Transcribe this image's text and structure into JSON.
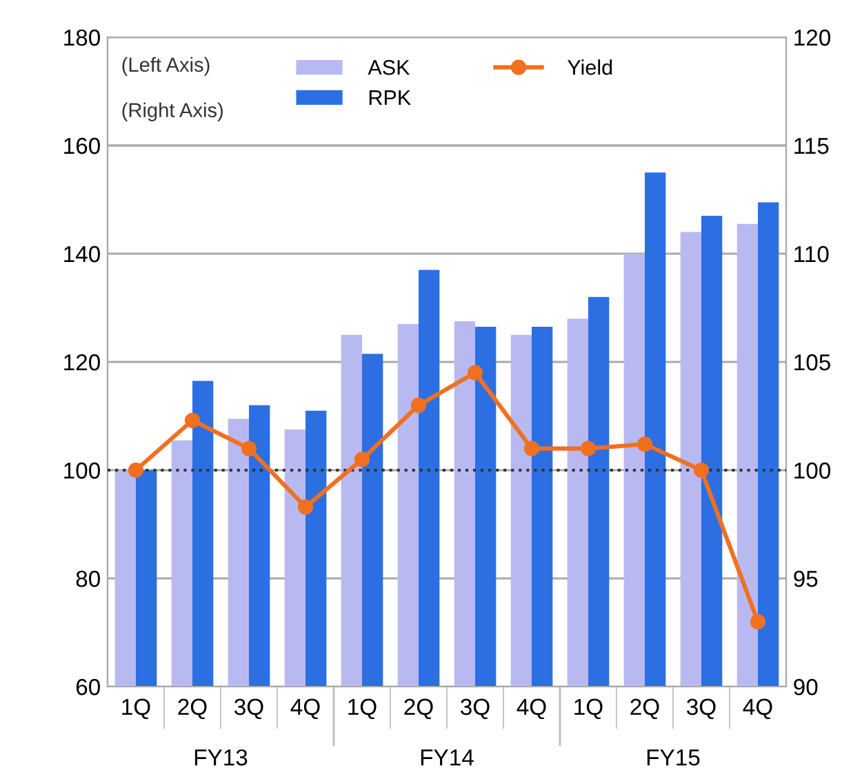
{
  "chart_data": {
    "type": "bar",
    "categories": [
      "1Q",
      "2Q",
      "3Q",
      "4Q",
      "1Q",
      "2Q",
      "3Q",
      "4Q",
      "1Q",
      "2Q",
      "3Q",
      "4Q"
    ],
    "series": [
      {
        "name": "ASK",
        "color": "#b9b9f2",
        "values": [
          100,
          105.5,
          109.5,
          107.5,
          125,
          127,
          127.5,
          125,
          128,
          140,
          144,
          145.5
        ]
      },
      {
        "name": "RPK",
        "color": "#2b6fe3",
        "values": [
          100,
          116.5,
          112,
          111,
          121.5,
          137,
          126.5,
          126.5,
          132,
          155,
          147,
          149.5
        ]
      },
      {
        "name": "Yield",
        "type": "line",
        "axis": "y2",
        "color": "#f07020",
        "values": [
          100,
          102.3,
          101,
          98.3,
          100.5,
          103,
          104.5,
          101,
          101,
          101.2,
          100,
          93
        ]
      }
    ],
    "ylim": [
      60,
      180
    ],
    "yticks": [
      60,
      80,
      100,
      120,
      140,
      160,
      180
    ],
    "y2lim": [
      90,
      120
    ],
    "y2ticks": [
      90,
      95,
      100,
      105,
      110,
      115,
      120
    ],
    "ref_lines": [
      {
        "axis": "y2",
        "value": 100,
        "color": "#333333",
        "line_style": "dotted"
      }
    ],
    "grid": "y",
    "legend": "top",
    "marker": "circle",
    "line_style": "solid",
    "annotations": [
      "FY13",
      "FY14",
      "FY15",
      "(Left Axis)",
      "(Right Axis)"
    ]
  }
}
